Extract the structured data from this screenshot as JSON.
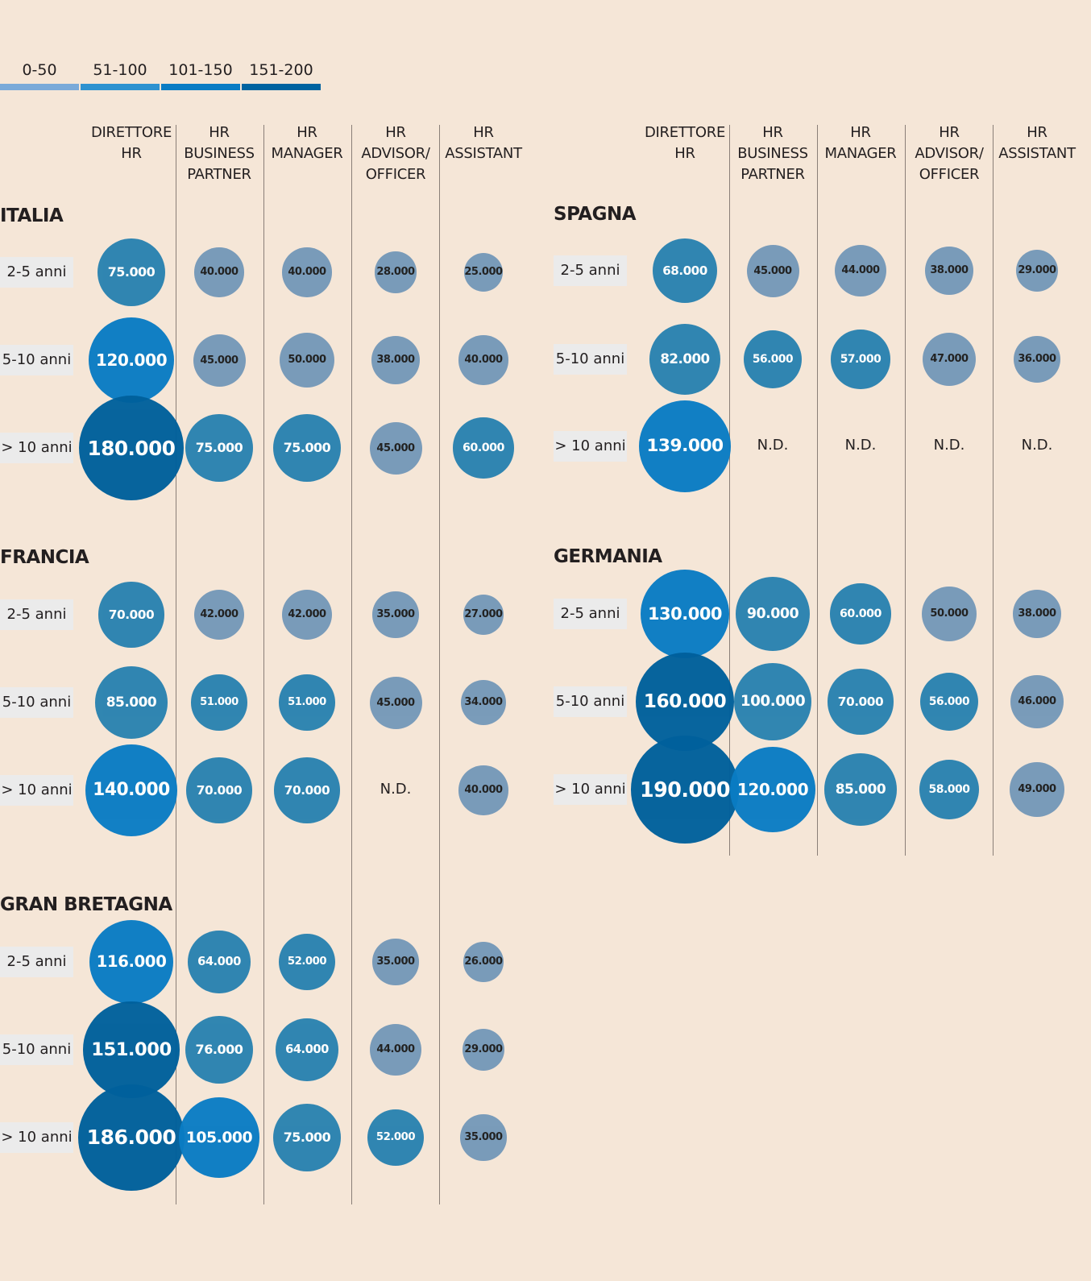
{
  "chart_data": {
    "type": "bubble-matrix",
    "legend": {
      "items": [
        {
          "label": "0-50",
          "color": "#7aaad9",
          "bubble_color": "#7699b9"
        },
        {
          "label": "51-100",
          "color": "#2e92d0",
          "bubble_color": "#2a82b0"
        },
        {
          "label": "101-150",
          "color": "#0a7cc4",
          "bubble_color": "#0a7cc4"
        },
        {
          "label": "151-200",
          "color": "#0063a0",
          "bubble_color": "#00609c"
        }
      ]
    },
    "columns": [
      "DIRETTORE\nHR",
      "HR\nBUSINESS\nPARTNER",
      "HR\nMANAGER",
      "HR\nADVISOR/\nOFFICER",
      "HR\nASSISTANT"
    ],
    "rows": [
      "2-5 anni",
      "5-10 anni",
      "> 10 anni"
    ],
    "missing_label": "N.D.",
    "countries": [
      {
        "name": "ITALIA",
        "values": [
          [
            75000,
            40000,
            40000,
            28000,
            25000
          ],
          [
            120000,
            45000,
            50000,
            38000,
            40000
          ],
          [
            180000,
            75000,
            75000,
            45000,
            60000
          ]
        ]
      },
      {
        "name": "FRANCIA",
        "values": [
          [
            70000,
            42000,
            42000,
            35000,
            27000
          ],
          [
            85000,
            51000,
            51000,
            45000,
            34000
          ],
          [
            140000,
            70000,
            70000,
            null,
            40000
          ]
        ]
      },
      {
        "name": "GRAN BRETAGNA",
        "values": [
          [
            116000,
            64000,
            52000,
            35000,
            26000
          ],
          [
            151000,
            76000,
            64000,
            44000,
            29000
          ],
          [
            186000,
            105000,
            75000,
            52000,
            35000
          ]
        ]
      },
      {
        "name": "SPAGNA",
        "values": [
          [
            68000,
            45000,
            44000,
            38000,
            29000
          ],
          [
            82000,
            56000,
            57000,
            47000,
            36000
          ],
          [
            139000,
            null,
            null,
            null,
            null
          ]
        ]
      },
      {
        "name": "GERMANIA",
        "values": [
          [
            130000,
            90000,
            60000,
            50000,
            38000
          ],
          [
            160000,
            100000,
            70000,
            56000,
            46000
          ],
          [
            190000,
            120000,
            85000,
            58000,
            49000
          ]
        ]
      }
    ]
  }
}
